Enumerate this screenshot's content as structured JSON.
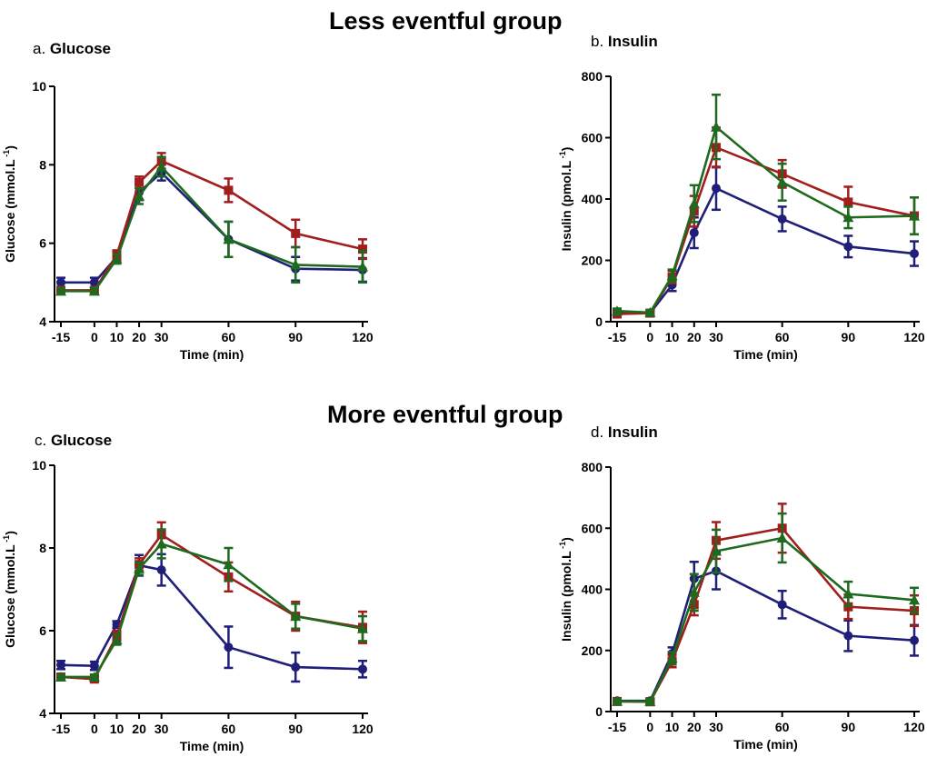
{
  "groups": [
    {
      "title": "Less eventful group"
    },
    {
      "title": "More eventful group"
    }
  ],
  "panels": [
    {
      "prefix": "a.",
      "name": "Glucose"
    },
    {
      "prefix": "b.",
      "name": "Insulin"
    },
    {
      "prefix": "c.",
      "name": "Glucose"
    },
    {
      "prefix": "d.",
      "name": "Insulin"
    }
  ],
  "colors": {
    "navy": "#1f1f7a",
    "red": "#a01e1e",
    "green": "#1e6a1e"
  },
  "chart_data": [
    {
      "type": "line",
      "title": "a. Glucose",
      "xlabel": "Time (min)",
      "ylabel": "Glucose (mmol.L",
      "ylabel_sup": "-1",
      "ylabel_close": ")",
      "x": [
        -15,
        0,
        10,
        20,
        30,
        60,
        90,
        120
      ],
      "xticks": [
        "-15",
        "0",
        "10",
        "20",
        "30",
        "60",
        "90",
        "120"
      ],
      "ylim": [
        4,
        10
      ],
      "yticks": [
        4,
        6,
        8,
        10
      ],
      "series": [
        {
          "color": "#1f1f7a",
          "marker": "circle",
          "values": [
            5.0,
            5.0,
            5.65,
            7.3,
            7.8,
            6.1,
            5.35,
            5.32
          ],
          "err": [
            0.12,
            0.12,
            0.12,
            0.2,
            0.2,
            0.45,
            0.3,
            0.3
          ]
        },
        {
          "color": "#a01e1e",
          "marker": "square",
          "values": [
            4.8,
            4.8,
            5.7,
            7.55,
            8.1,
            7.35,
            6.25,
            5.85
          ],
          "err": [
            0.08,
            0.08,
            0.12,
            0.15,
            0.2,
            0.3,
            0.35,
            0.25
          ]
        },
        {
          "color": "#1e6a1e",
          "marker": "triangle",
          "values": [
            4.78,
            4.78,
            5.6,
            7.2,
            7.95,
            6.1,
            5.45,
            5.4
          ],
          "err": [
            0.08,
            0.08,
            0.12,
            0.2,
            0.25,
            0.45,
            0.45,
            0.4
          ]
        }
      ]
    },
    {
      "type": "line",
      "title": "b. Insulin",
      "xlabel": "Time (min)",
      "ylabel": "Insulin (pmol.L",
      "ylabel_sup": "-1",
      "ylabel_close": ")",
      "x": [
        -15,
        0,
        10,
        20,
        30,
        60,
        90,
        120
      ],
      "xticks": [
        "-15",
        "0",
        "10",
        "20",
        "30",
        "60",
        "90",
        "120"
      ],
      "ylim": [
        0,
        800
      ],
      "yticks": [
        0,
        200,
        400,
        600,
        800
      ],
      "series": [
        {
          "color": "#1f1f7a",
          "marker": "circle",
          "values": [
            30,
            28,
            120,
            290,
            435,
            335,
            245,
            222
          ],
          "err": [
            8,
            8,
            20,
            50,
            70,
            40,
            35,
            40
          ]
        },
        {
          "color": "#a01e1e",
          "marker": "square",
          "values": [
            25,
            28,
            145,
            360,
            568,
            482,
            390,
            345
          ],
          "err": [
            8,
            8,
            20,
            50,
            65,
            45,
            50,
            60
          ]
        },
        {
          "color": "#1e6a1e",
          "marker": "triangle",
          "values": [
            35,
            30,
            150,
            385,
            635,
            455,
            340,
            345
          ],
          "err": [
            8,
            8,
            20,
            60,
            105,
            60,
            35,
            60
          ]
        }
      ]
    },
    {
      "type": "line",
      "title": "c. Glucose",
      "xlabel": "Time (min)",
      "ylabel": "Glucose (mmol.L",
      "ylabel_sup": "-1",
      "ylabel_close": ")",
      "x": [
        -15,
        0,
        10,
        20,
        30,
        60,
        90,
        120
      ],
      "xticks": [
        "-15",
        "0",
        "10",
        "20",
        "30",
        "60",
        "90",
        "120"
      ],
      "ylim": [
        4,
        10
      ],
      "yticks": [
        4,
        6,
        8,
        10
      ],
      "series": [
        {
          "color": "#1f1f7a",
          "marker": "circle",
          "values": [
            5.17,
            5.15,
            6.15,
            7.58,
            7.47,
            5.6,
            5.12,
            5.07
          ],
          "err": [
            0.1,
            0.1,
            0.08,
            0.25,
            0.38,
            0.5,
            0.35,
            0.2
          ]
        },
        {
          "color": "#a01e1e",
          "marker": "square",
          "values": [
            4.88,
            4.83,
            5.88,
            7.6,
            8.32,
            7.3,
            6.35,
            6.08
          ],
          "err": [
            0.06,
            0.06,
            0.12,
            0.15,
            0.3,
            0.35,
            0.35,
            0.38
          ]
        },
        {
          "color": "#1e6a1e",
          "marker": "triangle",
          "values": [
            4.88,
            4.88,
            5.78,
            7.5,
            8.1,
            7.6,
            6.35,
            6.05
          ],
          "err": [
            0.06,
            0.06,
            0.12,
            0.15,
            0.35,
            0.4,
            0.3,
            0.3
          ]
        }
      ]
    },
    {
      "type": "line",
      "title": "d. Insulin",
      "xlabel": "Time (min)",
      "ylabel": "Insulin (pmol.L",
      "ylabel_sup": "-1",
      "ylabel_close": ")",
      "x": [
        -15,
        0,
        10,
        20,
        30,
        60,
        90,
        120
      ],
      "xticks": [
        "-15",
        "0",
        "10",
        "20",
        "30",
        "60",
        "90",
        "120"
      ],
      "ylim": [
        0,
        800
      ],
      "yticks": [
        0,
        200,
        400,
        600,
        800
      ],
      "series": [
        {
          "color": "#1f1f7a",
          "marker": "circle",
          "values": [
            35,
            35,
            190,
            435,
            460,
            350,
            248,
            233
          ],
          "err": [
            8,
            8,
            20,
            55,
            60,
            45,
            50,
            50
          ]
        },
        {
          "color": "#a01e1e",
          "marker": "square",
          "values": [
            33,
            32,
            165,
            350,
            560,
            600,
            343,
            330
          ],
          "err": [
            8,
            8,
            20,
            35,
            60,
            80,
            40,
            50
          ]
        },
        {
          "color": "#1e6a1e",
          "marker": "triangle",
          "values": [
            34,
            33,
            175,
            390,
            525,
            568,
            385,
            365
          ],
          "err": [
            8,
            8,
            20,
            60,
            70,
            80,
            40,
            40
          ]
        }
      ]
    }
  ]
}
